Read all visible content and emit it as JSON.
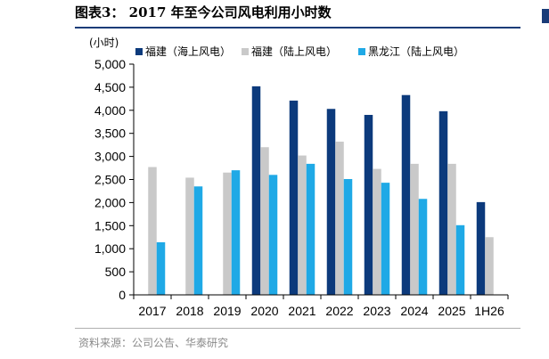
{
  "page": {
    "title": "图表3：  2017 年至今公司风电利用小时数",
    "source": "资料来源：公司公告、华泰研究"
  },
  "chart_data": {
    "type": "bar",
    "unit_label": "(小时)",
    "categories": [
      "2017",
      "2018",
      "2019",
      "2020",
      "2021",
      "2022",
      "2023",
      "2024",
      "2025",
      "1H26"
    ],
    "series": [
      {
        "name": "福建（海上风电）",
        "color": "#0c3a7c",
        "values": [
          null,
          null,
          null,
          4520,
          4210,
          4030,
          3900,
          4330,
          3980,
          2010
        ]
      },
      {
        "name": "福建（陆上风电）",
        "color": "#c9c9c9",
        "values": [
          2770,
          2540,
          2650,
          3200,
          3020,
          3320,
          2730,
          2840,
          2840,
          1250
        ]
      },
      {
        "name": "黑龙江（陆上风电）",
        "color": "#1fa9e6",
        "values": [
          1140,
          2350,
          2700,
          2600,
          2840,
          2510,
          2430,
          2080,
          1510,
          null
        ]
      }
    ],
    "ylim": [
      0,
      5000
    ],
    "yticks": [
      0,
      500,
      1000,
      1500,
      2000,
      2500,
      3000,
      3500,
      4000,
      4500,
      5000
    ],
    "ytick_labels": [
      "0",
      "500",
      "1,000",
      "1,500",
      "2,000",
      "2,500",
      "3,000",
      "3,500",
      "4,000",
      "4,500",
      "5,000"
    ],
    "grid": false,
    "legend_position": "top"
  }
}
